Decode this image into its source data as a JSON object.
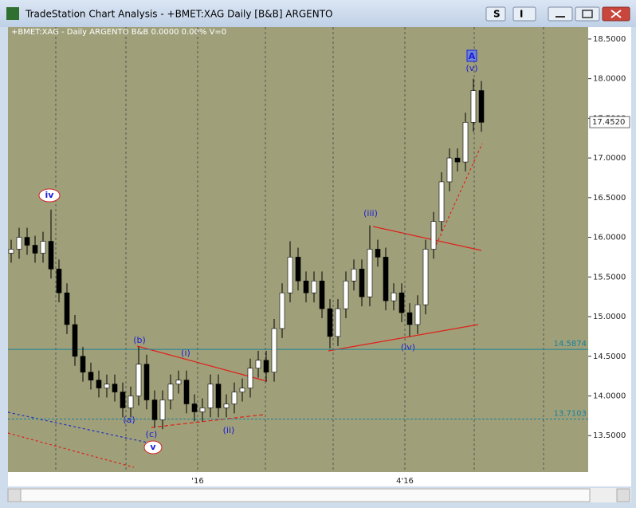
{
  "window_title": "TradeStation Chart Analysis - +BMET:XAG Daily [B&B] ARGENTO",
  "toolbar": [
    "S",
    "I"
  ],
  "chart_data": {
    "type": "candlestick",
    "title": "+BMET:XAG - Daily  ARGENTO  B&B  0.0000  0.00%  V=0",
    "open": [
      15.8,
      15.85,
      16.0,
      15.9,
      15.8,
      15.95,
      15.6,
      15.3,
      14.9,
      14.5,
      14.3,
      14.2,
      14.1,
      14.15,
      14.05,
      13.85,
      14.0,
      14.4,
      13.95,
      13.7,
      13.95,
      14.15,
      14.2,
      13.9,
      13.8,
      13.85,
      14.15,
      13.85,
      13.9,
      14.05,
      14.1,
      14.35,
      14.45,
      14.3,
      14.85,
      15.3,
      15.75,
      15.45,
      15.3,
      15.45,
      15.1,
      14.75,
      15.1,
      15.45,
      15.6,
      15.25,
      15.85,
      15.75,
      15.2,
      15.3,
      15.05,
      14.9,
      15.15,
      15.85,
      16.2,
      16.7,
      17.0,
      16.95,
      17.45,
      17.85
    ],
    "high": [
      15.97,
      16.12,
      16.12,
      16.02,
      16.07,
      16.35,
      15.72,
      15.42,
      15.02,
      14.62,
      14.42,
      14.32,
      14.27,
      14.27,
      14.17,
      14.12,
      14.62,
      14.52,
      14.07,
      14.07,
      14.27,
      14.32,
      14.32,
      14.02,
      13.97,
      14.27,
      14.27,
      14.02,
      14.17,
      14.22,
      14.47,
      14.57,
      14.57,
      14.97,
      15.42,
      15.95,
      15.87,
      15.57,
      15.57,
      15.57,
      15.22,
      15.22,
      15.57,
      15.72,
      15.72,
      16.15,
      15.97,
      15.87,
      15.42,
      15.42,
      15.17,
      15.27,
      15.97,
      16.32,
      16.82,
      17.12,
      17.12,
      17.57,
      18.0,
      17.97
    ],
    "low": [
      15.68,
      15.73,
      15.78,
      15.68,
      15.68,
      15.48,
      15.18,
      14.78,
      14.38,
      14.18,
      14.08,
      13.98,
      13.98,
      13.93,
      13.73,
      13.73,
      13.88,
      13.83,
      13.6,
      13.58,
      13.83,
      14.03,
      13.78,
      13.68,
      13.68,
      13.73,
      13.73,
      13.73,
      13.78,
      13.93,
      13.98,
      14.23,
      14.18,
      14.18,
      14.73,
      15.18,
      15.33,
      15.18,
      15.18,
      14.98,
      14.6,
      14.63,
      14.98,
      15.33,
      15.13,
      15.13,
      15.63,
      15.08,
      15.08,
      14.93,
      14.75,
      14.78,
      15.03,
      15.73,
      16.08,
      16.58,
      16.83,
      16.83,
      17.33,
      17.33
    ],
    "close": [
      15.85,
      16.0,
      15.9,
      15.8,
      15.95,
      15.6,
      15.3,
      14.9,
      14.5,
      14.3,
      14.2,
      14.1,
      14.15,
      14.05,
      13.85,
      14.0,
      14.4,
      13.95,
      13.7,
      13.95,
      14.15,
      14.2,
      13.9,
      13.8,
      13.85,
      14.15,
      13.85,
      13.9,
      14.05,
      14.1,
      14.35,
      14.45,
      14.3,
      14.85,
      15.3,
      15.75,
      15.45,
      15.3,
      15.45,
      15.1,
      14.75,
      15.1,
      15.45,
      15.6,
      15.25,
      15.85,
      15.75,
      15.2,
      15.3,
      15.05,
      14.9,
      15.15,
      15.85,
      16.2,
      16.7,
      17.0,
      16.95,
      17.45,
      17.85,
      17.45
    ],
    "up_color": "#ffffff",
    "down_color": "#000000",
    "xlim": [
      -0.4,
      72.4
    ],
    "xticks": [
      {
        "value": 23.4,
        "label": "'16"
      },
      {
        "value": 49.4,
        "label": "4'16"
      }
    ],
    "ylim": [
      13.04,
      18.65
    ],
    "yticks": [
      {
        "value": 13.5,
        "label": "13.5000"
      },
      {
        "value": 14,
        "label": "14.0000"
      },
      {
        "value": 14.5,
        "label": "14.5000"
      },
      {
        "value": 15,
        "label": "15.0000"
      },
      {
        "value": 15.5,
        "label": "15.5000"
      },
      {
        "value": 16,
        "label": "16.0000"
      },
      {
        "value": 16.5,
        "label": "16.5000"
      },
      {
        "value": 17,
        "label": "17.0000"
      },
      {
        "value": 17.5,
        "label": "17.5000"
      },
      {
        "value": 18,
        "label": "18.0000"
      },
      {
        "value": 18.5,
        "label": "18.5000"
      }
    ],
    "levels": [
      {
        "value": 14.5874,
        "style": "solid",
        "color": "#1a7f9a"
      },
      {
        "value": 13.7103,
        "style": "dashed",
        "color": "#1a7f9a"
      }
    ],
    "last_price": {
      "value": 17.452,
      "label": "17.4520"
    },
    "annotations": [
      "iv",
      "v",
      "(a)",
      "(b)",
      "(c)",
      "(i)",
      "(ii)",
      "(iii)",
      "(iv)",
      "(v)",
      "A"
    ]
  }
}
